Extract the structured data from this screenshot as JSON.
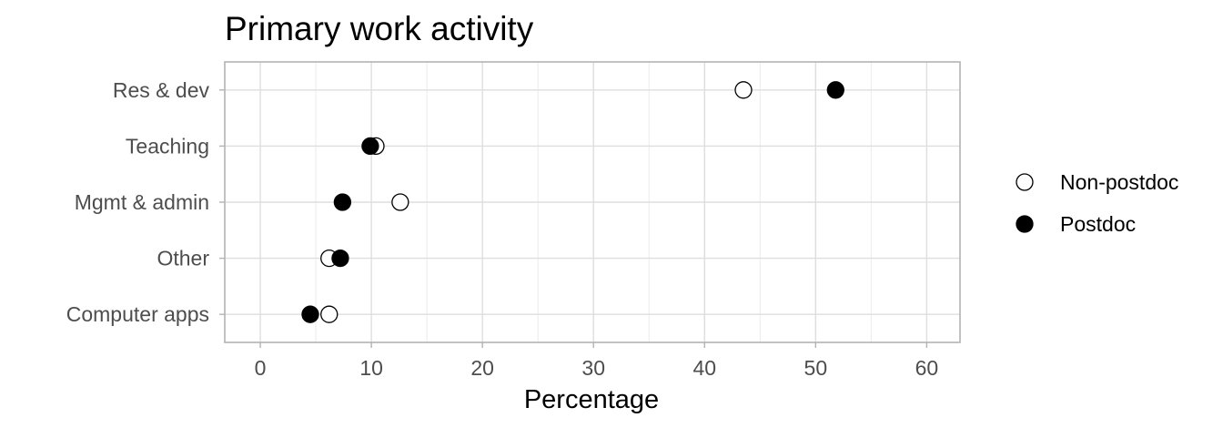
{
  "chart_data": {
    "type": "scatter",
    "title": "Primary work activity",
    "xlabel": "Percentage",
    "ylabel": "",
    "xlim": [
      -3.2,
      63
    ],
    "xticks": [
      0,
      10,
      20,
      30,
      40,
      50,
      60
    ],
    "categories": [
      "Res & dev",
      "Teaching",
      "Mgmt & admin",
      "Other",
      "Computer apps"
    ],
    "series": [
      {
        "name": "Non-postdoc",
        "marker": "open-circle",
        "color": "#000000",
        "values": [
          43.5,
          10.4,
          12.6,
          6.2,
          6.2
        ]
      },
      {
        "name": "Postdoc",
        "marker": "filled-circle",
        "color": "#000000",
        "values": [
          51.8,
          9.9,
          7.4,
          7.2,
          4.5
        ]
      }
    ],
    "grid": true,
    "legend_position": "right"
  }
}
